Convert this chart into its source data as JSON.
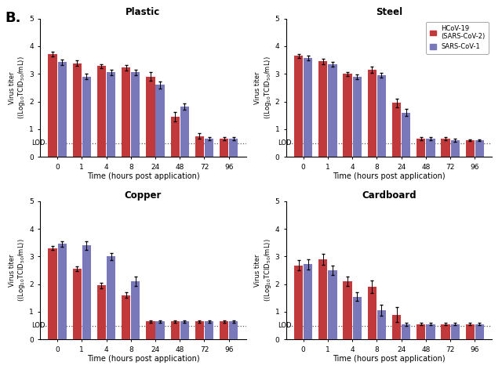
{
  "titles": [
    "Plastic",
    "Steel",
    "Copper",
    "Cardboard"
  ],
  "time_labels": [
    "0",
    "1",
    "4",
    "8",
    "24",
    "48",
    "72",
    "96"
  ],
  "red_color": "#C1393B",
  "blue_color": "#7878BB",
  "lod_val": 0.5,
  "lod_label": "LOD",
  "xlabel": "Time (hours post application)",
  "legend_labels": [
    "HCoV-19\n(SARS-CoV-2)",
    "SARS-CoV-1"
  ],
  "ylim": [
    0,
    5
  ],
  "yticks": [
    0,
    1,
    2,
    3,
    4,
    5
  ],
  "panel_label": "B.",
  "plastic": {
    "red_vals": [
      3.72,
      3.38,
      3.28,
      3.22,
      2.9,
      1.45,
      0.75,
      0.65
    ],
    "blue_vals": [
      3.42,
      2.9,
      3.05,
      3.05,
      2.6,
      1.82,
      0.65,
      0.65
    ],
    "red_err": [
      0.09,
      0.1,
      0.07,
      0.1,
      0.15,
      0.18,
      0.1,
      0.05
    ],
    "blue_err": [
      0.1,
      0.1,
      0.1,
      0.1,
      0.12,
      0.12,
      0.05,
      0.05
    ]
  },
  "steel": {
    "red_vals": [
      3.65,
      3.45,
      3.0,
      3.15,
      1.95,
      0.65,
      0.65,
      0.6
    ],
    "blue_vals": [
      3.58,
      3.35,
      2.9,
      2.95,
      1.6,
      0.65,
      0.6,
      0.6
    ],
    "red_err": [
      0.07,
      0.1,
      0.07,
      0.12,
      0.15,
      0.05,
      0.05,
      0.04
    ],
    "blue_err": [
      0.08,
      0.08,
      0.08,
      0.08,
      0.12,
      0.05,
      0.05,
      0.04
    ]
  },
  "copper": {
    "red_vals": [
      3.3,
      2.55,
      1.95,
      1.6,
      0.65,
      0.65,
      0.65,
      0.65
    ],
    "blue_vals": [
      3.45,
      3.4,
      3.0,
      2.1,
      0.65,
      0.65,
      0.65,
      0.65
    ],
    "red_err": [
      0.07,
      0.09,
      0.1,
      0.1,
      0.04,
      0.04,
      0.04,
      0.04
    ],
    "blue_err": [
      0.09,
      0.15,
      0.12,
      0.18,
      0.04,
      0.04,
      0.04,
      0.04
    ]
  },
  "cardboard": {
    "red_vals": [
      2.68,
      2.9,
      2.1,
      1.9,
      0.9,
      0.55,
      0.55,
      0.55
    ],
    "blue_vals": [
      2.72,
      2.5,
      1.55,
      1.05,
      0.55,
      0.55,
      0.55,
      0.55
    ],
    "red_err": [
      0.18,
      0.2,
      0.18,
      0.22,
      0.28,
      0.04,
      0.04,
      0.04
    ],
    "blue_err": [
      0.18,
      0.18,
      0.15,
      0.2,
      0.06,
      0.04,
      0.04,
      0.04
    ]
  }
}
